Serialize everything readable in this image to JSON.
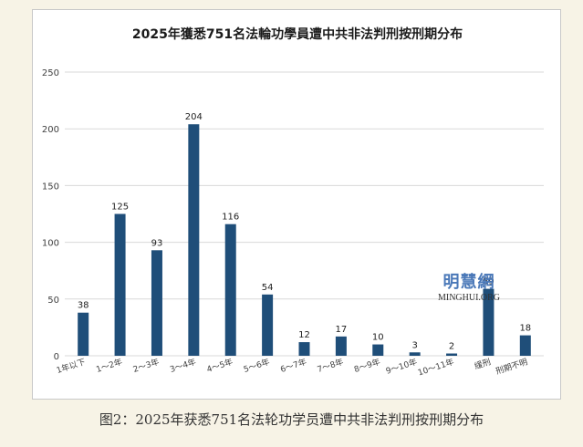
{
  "caption": "图2：2025年获悉751名法轮功学员遭中共非法判刑按刑期分布",
  "watermark": {
    "name_cn": "明慧網",
    "name_en": "MINGHUI.ORG"
  },
  "colors": {
    "bar": "#1f4e79",
    "grid": "#d9d9d9",
    "axis_text": "#404040",
    "background": "#f7f3e6"
  },
  "chart_data": {
    "type": "bar",
    "title": "2025年獲悉751名法輪功學員遭中共非法判刑按刑期分布",
    "xlabel": "",
    "ylabel": "",
    "categories": [
      "1年以下",
      "1～2年",
      "2～3年",
      "3～4年",
      "4～5年",
      "5～6年",
      "6～7年",
      "7～8年",
      "8～9年",
      "9～10年",
      "10～11年",
      "緩刑",
      "刑期不明"
    ],
    "values": [
      38,
      125,
      93,
      204,
      116,
      54,
      12,
      17,
      10,
      3,
      2,
      59,
      18
    ],
    "ylim": [
      0,
      250
    ],
    "yticks": [
      0,
      50,
      100,
      150,
      200,
      250
    ],
    "grid": true,
    "legend": "none",
    "data_labels": true
  }
}
